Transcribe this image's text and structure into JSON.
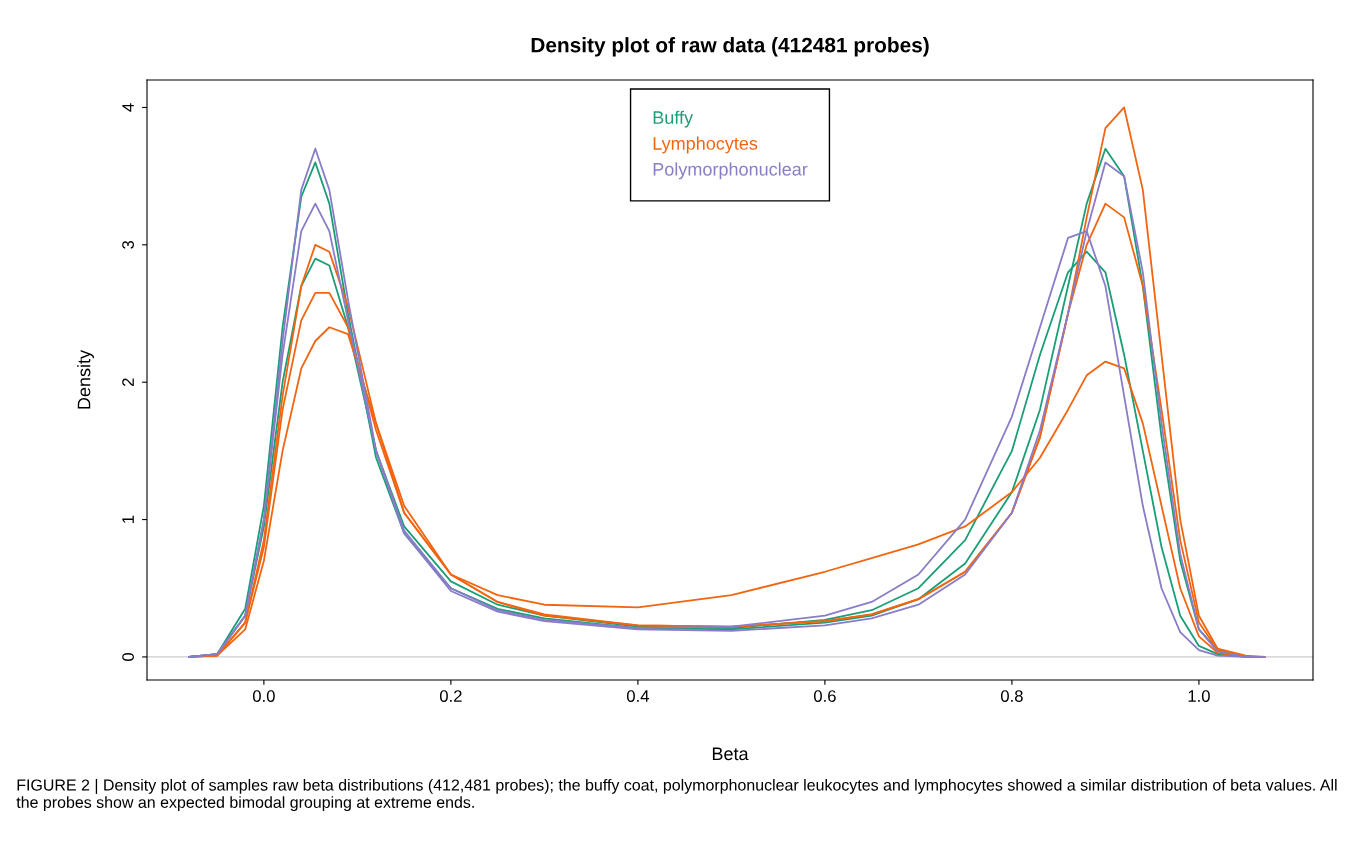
{
  "chart_data": {
    "type": "line",
    "title": "Density plot of raw data (412481 probes)",
    "xlabel": "Beta",
    "ylabel": "Density",
    "x": [
      -0.08,
      -0.05,
      -0.02,
      0,
      0.02,
      0.04,
      0.055,
      0.07,
      0.09,
      0.12,
      0.15,
      0.2,
      0.25,
      0.3,
      0.4,
      0.5,
      0.6,
      0.65,
      0.7,
      0.75,
      0.8,
      0.83,
      0.86,
      0.88,
      0.9,
      0.92,
      0.94,
      0.96,
      0.98,
      1.0,
      1.02,
      1.05,
      1.07
    ],
    "series": [
      {
        "name": "Buffy",
        "color": "#1b9e77",
        "values": [
          0,
          0.02,
          0.35,
          1.1,
          2.4,
          3.35,
          3.6,
          3.3,
          2.5,
          1.45,
          0.9,
          0.5,
          0.35,
          0.28,
          0.21,
          0.2,
          0.25,
          0.3,
          0.42,
          0.68,
          1.2,
          1.8,
          2.7,
          3.3,
          3.7,
          3.5,
          2.7,
          1.6,
          0.7,
          0.2,
          0.05,
          0,
          0
        ]
      },
      {
        "color": "#1b9e77",
        "values": [
          0,
          0.02,
          0.3,
          0.95,
          2.0,
          2.7,
          2.9,
          2.85,
          2.4,
          1.5,
          0.95,
          0.55,
          0.38,
          0.3,
          0.22,
          0.21,
          0.27,
          0.34,
          0.5,
          0.85,
          1.5,
          2.2,
          2.8,
          2.95,
          2.8,
          2.2,
          1.5,
          0.8,
          0.3,
          0.08,
          0.02,
          0,
          0
        ]
      },
      {
        "name": "Lymphocytes",
        "color": "#f26510",
        "values": [
          0,
          0.01,
          0.25,
          0.85,
          1.9,
          2.7,
          3.0,
          2.95,
          2.55,
          1.7,
          1.05,
          0.6,
          0.4,
          0.3,
          0.23,
          0.22,
          0.26,
          0.31,
          0.42,
          0.62,
          1.05,
          1.6,
          2.5,
          3.2,
          3.85,
          4.0,
          3.4,
          2.2,
          1.0,
          0.3,
          0.06,
          0.01,
          0
        ]
      },
      {
        "color": "#f26510",
        "values": [
          0,
          0.01,
          0.25,
          0.8,
          1.8,
          2.45,
          2.65,
          2.65,
          2.4,
          1.65,
          1.05,
          0.6,
          0.4,
          0.31,
          0.23,
          0.22,
          0.26,
          0.31,
          0.42,
          0.62,
          1.05,
          1.6,
          2.5,
          3.0,
          3.3,
          3.2,
          2.7,
          1.8,
          0.85,
          0.25,
          0.05,
          0,
          0
        ]
      },
      {
        "color": "#f26510",
        "values": [
          0,
          0.01,
          0.2,
          0.7,
          1.5,
          2.1,
          2.3,
          2.4,
          2.35,
          1.7,
          1.1,
          0.6,
          0.45,
          0.38,
          0.36,
          0.45,
          0.62,
          0.72,
          0.82,
          0.95,
          1.2,
          1.45,
          1.8,
          2.05,
          2.15,
          2.1,
          1.7,
          1.1,
          0.5,
          0.15,
          0.03,
          0,
          0
        ]
      },
      {
        "name": "Polymorphonuclear",
        "color": "#8a7cc8",
        "values": [
          0,
          0.02,
          0.3,
          1.0,
          2.3,
          3.4,
          3.7,
          3.4,
          2.6,
          1.5,
          0.9,
          0.48,
          0.33,
          0.26,
          0.2,
          0.19,
          0.23,
          0.28,
          0.38,
          0.6,
          1.05,
          1.65,
          2.5,
          3.1,
          3.6,
          3.5,
          2.8,
          1.7,
          0.75,
          0.2,
          0.04,
          0,
          0
        ]
      },
      {
        "color": "#8a7cc8",
        "values": [
          0,
          0.02,
          0.3,
          1.0,
          2.2,
          3.1,
          3.3,
          3.1,
          2.45,
          1.5,
          0.92,
          0.5,
          0.34,
          0.27,
          0.21,
          0.22,
          0.3,
          0.4,
          0.6,
          1.0,
          1.75,
          2.4,
          3.05,
          3.1,
          2.7,
          1.9,
          1.1,
          0.5,
          0.18,
          0.05,
          0.01,
          0,
          0
        ]
      }
    ],
    "xlim": [
      -0.125,
      1.122
    ],
    "ylim": [
      -0.168,
      4.2
    ],
    "xticks": [
      {
        "value": 0,
        "label": "0.0"
      },
      0.2,
      0.4,
      0.6,
      0.8,
      {
        "value": 1,
        "label": "1.0"
      }
    ],
    "yticks": [
      0,
      1,
      2,
      3,
      4
    ],
    "ref_lines": [
      {
        "axis": "y",
        "value": 0,
        "color": "#cccccc"
      }
    ],
    "legend": "top",
    "grid": false,
    "marker": "none",
    "line_style": "solid",
    "annotations": [
      "FIGURE 2 | Density plot of samples raw beta distributions (412,481 probes); the buffy coat, polymorphonuclear leukocytes and lymphocytes showed a similar distribution of beta values. All the probes show an expected bimodal grouping at extreme ends."
    ]
  }
}
